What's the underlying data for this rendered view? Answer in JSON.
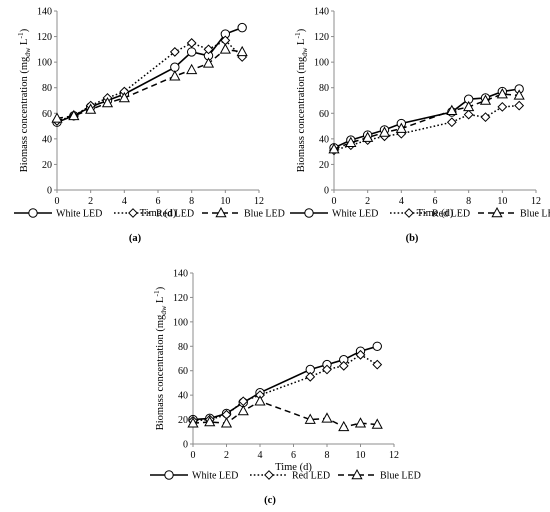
{
  "chart_data": [
    {
      "type": "line",
      "caption": "(a)",
      "xlabel": "Time (d)",
      "ylabel": "Biomass concentration (mg",
      "ylabel_sub": "dw",
      "ylabel_unit": " L",
      "ylabel_sup": "-1",
      "ylabel_close": ")",
      "xlim": [
        0,
        12
      ],
      "ylim": [
        0,
        140
      ],
      "xticks": [
        0,
        2,
        4,
        6,
        8,
        10,
        12
      ],
      "yticks": [
        0,
        20,
        40,
        60,
        80,
        100,
        120,
        140
      ],
      "grid": false,
      "legend": "bottom",
      "series": [
        {
          "name": "White LED",
          "marker": "circle",
          "line": "solid",
          "x": [
            0,
            1,
            2,
            3,
            4,
            7,
            8,
            9,
            10,
            11
          ],
          "y": [
            53,
            58,
            65,
            70,
            75,
            96,
            108,
            105,
            122,
            127
          ]
        },
        {
          "name": "Red LED",
          "marker": "diamond",
          "line": "dotted",
          "x": [
            0,
            1,
            2,
            3,
            4,
            7,
            8,
            9,
            10,
            11
          ],
          "y": [
            54,
            58,
            66,
            72,
            77,
            108,
            115,
            110,
            117,
            104
          ]
        },
        {
          "name": "Blue LED",
          "marker": "triangle",
          "line": "dashed",
          "x": [
            0,
            1,
            2,
            3,
            4,
            7,
            8,
            9,
            10,
            11
          ],
          "y": [
            56,
            58,
            63,
            68,
            72,
            89,
            94,
            99,
            110,
            108
          ]
        }
      ]
    },
    {
      "type": "line",
      "caption": "(b)",
      "xlabel": "Time (d)",
      "ylabel": "Biomass concentration (mg",
      "ylabel_sub": "dw",
      "ylabel_unit": " L",
      "ylabel_sup": "-1",
      "ylabel_close": ")",
      "xlim": [
        0,
        12
      ],
      "ylim": [
        0,
        140
      ],
      "xticks": [
        0,
        2,
        4,
        6,
        8,
        10,
        12
      ],
      "yticks": [
        0,
        20,
        40,
        60,
        80,
        100,
        120,
        140
      ],
      "grid": false,
      "legend": "bottom",
      "series": [
        {
          "name": "White LED",
          "marker": "circle",
          "line": "solid",
          "x": [
            0,
            1,
            2,
            3,
            4,
            7,
            8,
            9,
            10,
            11
          ],
          "y": [
            33,
            39,
            43,
            47,
            52,
            61,
            71,
            72,
            77,
            79
          ]
        },
        {
          "name": "Red LED",
          "marker": "diamond",
          "line": "dotted",
          "x": [
            0,
            1,
            2,
            3,
            4,
            7,
            8,
            9,
            10,
            11
          ],
          "y": [
            31,
            35,
            39,
            42,
            44,
            53,
            59,
            57,
            65,
            66
          ]
        },
        {
          "name": "Blue LED",
          "marker": "triangle",
          "line": "dashed",
          "x": [
            0,
            1,
            2,
            3,
            4,
            7,
            8,
            9,
            10,
            11
          ],
          "y": [
            32,
            37,
            41,
            45,
            48,
            62,
            65,
            70,
            75,
            74
          ]
        }
      ]
    },
    {
      "type": "line",
      "caption": "(c)",
      "xlabel": "Time (d)",
      "ylabel": "Biomass concentration (mg",
      "ylabel_sub": "dw",
      "ylabel_unit": " L",
      "ylabel_sup": "-1",
      "ylabel_close": ")",
      "xlim": [
        0,
        12
      ],
      "ylim": [
        0,
        140
      ],
      "xticks": [
        0,
        2,
        4,
        6,
        8,
        10,
        12
      ],
      "yticks": [
        0,
        20,
        40,
        60,
        80,
        100,
        120,
        140
      ],
      "grid": false,
      "legend": "bottom",
      "series": [
        {
          "name": "White LED",
          "marker": "circle",
          "line": "solid",
          "x": [
            0,
            1,
            2,
            3,
            4,
            7,
            8,
            9,
            10,
            11
          ],
          "y": [
            20,
            21,
            25,
            34,
            42,
            61,
            65,
            69,
            76,
            80
          ]
        },
        {
          "name": "Red LED",
          "marker": "diamond",
          "line": "dotted",
          "x": [
            0,
            1,
            2,
            3,
            4,
            7,
            8,
            9,
            10,
            11
          ],
          "y": [
            19,
            20,
            24,
            35,
            40,
            55,
            61,
            64,
            73,
            65
          ]
        },
        {
          "name": "Blue LED",
          "marker": "triangle",
          "line": "dashed",
          "x": [
            0,
            1,
            2,
            3,
            4,
            7,
            8,
            9,
            10,
            11
          ],
          "y": [
            17,
            18,
            17,
            27,
            35,
            20,
            21,
            14,
            17,
            16
          ]
        }
      ]
    }
  ]
}
